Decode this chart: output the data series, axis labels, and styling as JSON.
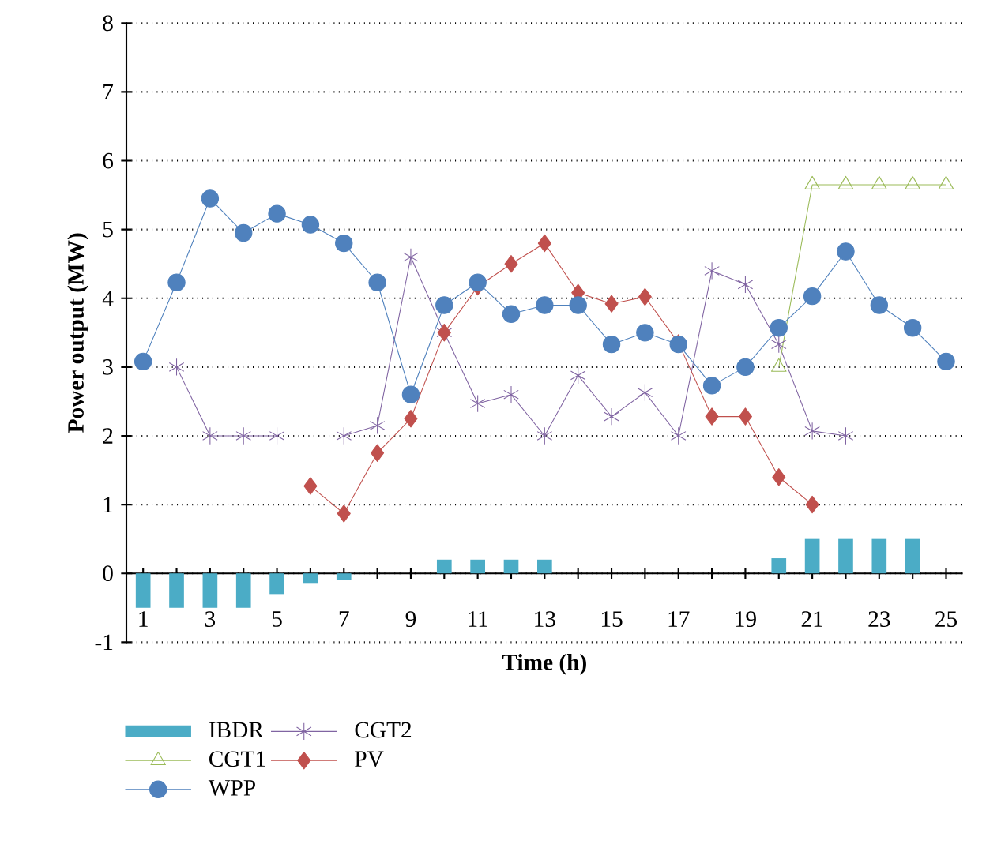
{
  "chart_data": {
    "type": "line",
    "xlabel": "Time (h)",
    "ylabel": "Power output (MW)",
    "x": [
      1,
      2,
      3,
      4,
      5,
      6,
      7,
      8,
      9,
      10,
      11,
      12,
      13,
      14,
      15,
      16,
      17,
      18,
      19,
      20,
      21,
      22,
      23,
      24,
      25
    ],
    "xlim": [
      0.5,
      25.5
    ],
    "ylim": [
      -1,
      8
    ],
    "yticks": [
      -1,
      0,
      1,
      2,
      3,
      4,
      5,
      6,
      7,
      8
    ],
    "xticks": [
      1,
      {
        "value": 2,
        "label": null
      },
      3,
      {
        "value": 4,
        "label": null
      },
      5,
      {
        "value": 6,
        "label": null
      },
      7,
      {
        "value": 8,
        "label": null
      },
      9,
      {
        "value": 10,
        "label": null
      },
      11,
      {
        "value": 12,
        "label": null
      },
      13,
      {
        "value": 14,
        "label": null
      },
      15,
      {
        "value": 16,
        "label": null
      },
      17,
      {
        "value": 18,
        "label": null
      },
      19,
      {
        "value": 20,
        "label": null
      },
      21,
      {
        "value": 22,
        "label": null
      },
      23,
      {
        "value": 24,
        "label": null
      },
      25
    ],
    "grid": "y",
    "legend": "bottom",
    "series": [
      {
        "name": "IBDR",
        "type": "bar",
        "color": "#4bacc6",
        "values": [
          -0.5,
          -0.5,
          -0.5,
          -0.5,
          -0.3,
          -0.15,
          -0.1,
          0,
          0,
          0.2,
          0.2,
          0.2,
          0.2,
          0,
          0,
          0,
          0,
          0,
          0,
          0.22,
          0.5,
          0.5,
          0.5,
          0.5,
          0
        ]
      },
      {
        "name": "CGT1",
        "color": "#9bbb59",
        "marker": "triangle",
        "values": [
          null,
          null,
          null,
          null,
          null,
          null,
          null,
          null,
          null,
          null,
          null,
          null,
          null,
          null,
          null,
          null,
          null,
          null,
          null,
          3.0,
          5.65,
          5.65,
          5.65,
          5.65,
          5.65
        ]
      },
      {
        "name": "WPP",
        "color": "#4f81bd",
        "marker": "circle",
        "values": [
          3.08,
          4.23,
          5.45,
          4.95,
          5.23,
          5.07,
          4.8,
          4.23,
          2.6,
          3.9,
          4.23,
          3.77,
          3.9,
          3.9,
          3.33,
          3.5,
          3.33,
          2.73,
          3.0,
          3.57,
          4.03,
          4.68,
          3.9,
          3.57,
          3.08
        ]
      },
      {
        "name": "CGT2",
        "color": "#8064a2",
        "marker": "cross",
        "values": [
          null,
          3.0,
          2.0,
          2.0,
          2.0,
          null,
          2.0,
          2.15,
          4.6,
          3.5,
          2.47,
          2.6,
          2.0,
          2.88,
          2.28,
          2.63,
          2.0,
          4.4,
          4.2,
          3.33,
          2.07,
          2.0,
          null,
          null,
          null
        ]
      },
      {
        "name": "PV",
        "color": "#c0504d",
        "marker": "diamond",
        "values": [
          null,
          null,
          null,
          null,
          null,
          1.27,
          0.87,
          1.75,
          2.25,
          3.5,
          4.17,
          4.5,
          4.8,
          4.08,
          3.92,
          4.02,
          3.35,
          2.28,
          2.28,
          1.4,
          1.0,
          null,
          null,
          null,
          null
        ]
      }
    ]
  }
}
